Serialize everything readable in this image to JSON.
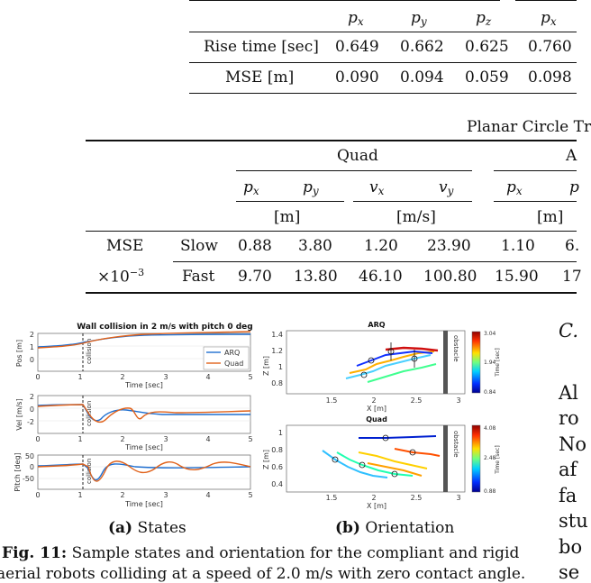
{
  "table_top": {
    "col_headers": [
      "p_x",
      "p_y",
      "p_z",
      "p_x"
    ],
    "rows": [
      {
        "label": "Rise time [sec]",
        "values": [
          "0.649",
          "0.662",
          "0.625",
          "0.760"
        ]
      },
      {
        "label": "MSE [m]",
        "values": [
          "0.090",
          "0.094",
          "0.059",
          "0.098"
        ]
      }
    ]
  },
  "table_circle": {
    "title": "Planar Circle Tr",
    "group_quad": "Quad",
    "group_second": "A",
    "sub_headers": [
      "p_x",
      "p_y",
      "v_x",
      "v_y",
      "p_x",
      "p"
    ],
    "units": {
      "pos": "[m]",
      "vel": "[m/s]",
      "pos2": "[m]"
    },
    "row_label_1": "MSE",
    "row_label_2": "×10",
    "row_label_2_exp": "−3",
    "rows": [
      {
        "label": "Slow",
        "values": [
          "0.88",
          "3.80",
          "1.20",
          "23.90",
          "1.10",
          "6."
        ]
      },
      {
        "label": "Fast",
        "values": [
          "9.70",
          "13.80",
          "46.10",
          "100.80",
          "15.90",
          "17"
        ]
      }
    ]
  },
  "figure": {
    "left_title": "Wall collision in 2 m/s with pitch 0 deg",
    "legend": [
      "ARQ",
      "Quad"
    ],
    "colors": {
      "arq": "#1f6fd0",
      "quad": "#e0621b"
    },
    "plots": [
      {
        "ylabel": "Pos [m]",
        "yticks": [
          "2",
          "1",
          "0"
        ]
      },
      {
        "ylabel": "Vel [m/s]",
        "yticks": [
          "2",
          "0",
          "-2"
        ]
      },
      {
        "ylabel": "Pitch [deg]",
        "yticks": [
          "50",
          "0",
          "-50"
        ]
      }
    ],
    "xticks": [
      "0",
      "1",
      "2",
      "3",
      "4",
      "5"
    ],
    "xlabel": "Time [sec]",
    "collision_label": "collision",
    "right_titles": [
      "ARQ",
      "Quad"
    ],
    "right_xlabel": "X [m]",
    "right_ylabel": "Z [m]",
    "right_xticks": [
      "1.5",
      "2",
      "2.5",
      "3"
    ],
    "arq_yticks": [
      "1.4",
      "1.2",
      "1",
      "0.8"
    ],
    "quad_yticks": [
      "1",
      "0.8",
      "0.6",
      "0.4"
    ],
    "obstacle_label": "obstacle",
    "colorbar_label": "Time [sec]",
    "arq_cbar": [
      "3.04",
      "1.94",
      "0.84"
    ],
    "quad_cbar": [
      "4.08",
      "2.48",
      "0.88"
    ],
    "subcap_a": "States",
    "subcap_b": "Orientation",
    "subcap_a_tag": "(a)",
    "subcap_b_tag": "(b)",
    "caption_label": "Fig. 11:",
    "caption_line1": "Sample states and orientation for the compliant and rigid",
    "caption_line2": "aerial robots colliding at a speed of 2.0 m/s with zero contact angle."
  },
  "right_column": {
    "section": "C.",
    "fragments": [
      "Al",
      "ro",
      "No",
      "af",
      "fa",
      "stu",
      "bo",
      "se"
    ]
  }
}
